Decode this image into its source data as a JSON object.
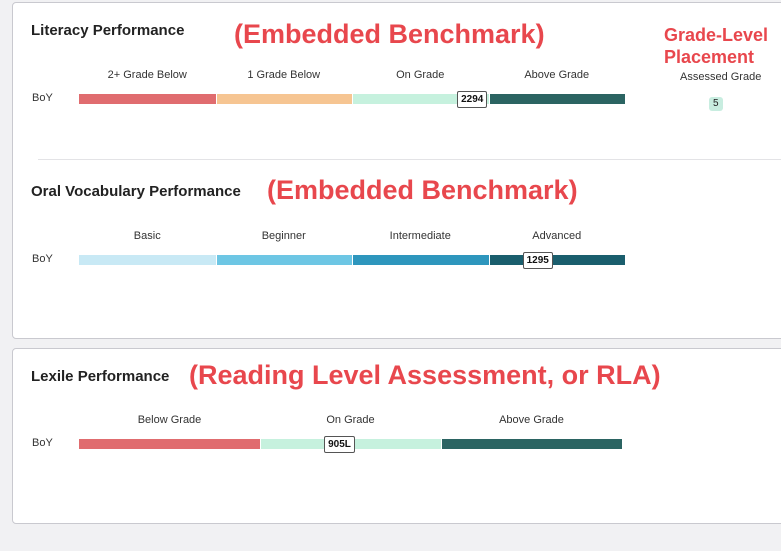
{
  "row_label": "BoY",
  "literacy": {
    "title": "Literacy Performance",
    "overlay": "(Embedded Benchmark)",
    "categories": [
      "2+ Grade Below",
      "1 Grade Below",
      "On Grade",
      "Above Grade"
    ],
    "colors": [
      "#e06c6f",
      "#f6c592",
      "#c6f1de",
      "#2b6462"
    ],
    "score": "2294",
    "score_position_fraction": 0.72
  },
  "grade_level": {
    "overlay_line1": "Grade-Level",
    "overlay_line2": "Placement",
    "label": "Assessed Grade",
    "value": "5"
  },
  "oral_vocabulary": {
    "title": "Oral Vocabulary Performance",
    "overlay": "(Embedded Benchmark)",
    "categories": [
      "Basic",
      "Beginner",
      "Intermediate",
      "Advanced"
    ],
    "colors": [
      "#c8e9f5",
      "#6dc6e4",
      "#2e96bd",
      "#1a5e6d"
    ],
    "score": "1295",
    "score_position_fraction": 0.84
  },
  "lexile": {
    "title": "Lexile Performance",
    "overlay": "(Reading Level Assessment, or RLA)",
    "categories": [
      "Below Grade",
      "On Grade",
      "Above Grade"
    ],
    "colors": [
      "#e06c6f",
      "#c6f1de",
      "#2b6462"
    ],
    "score": "905L",
    "score_position_fraction": 0.48
  }
}
